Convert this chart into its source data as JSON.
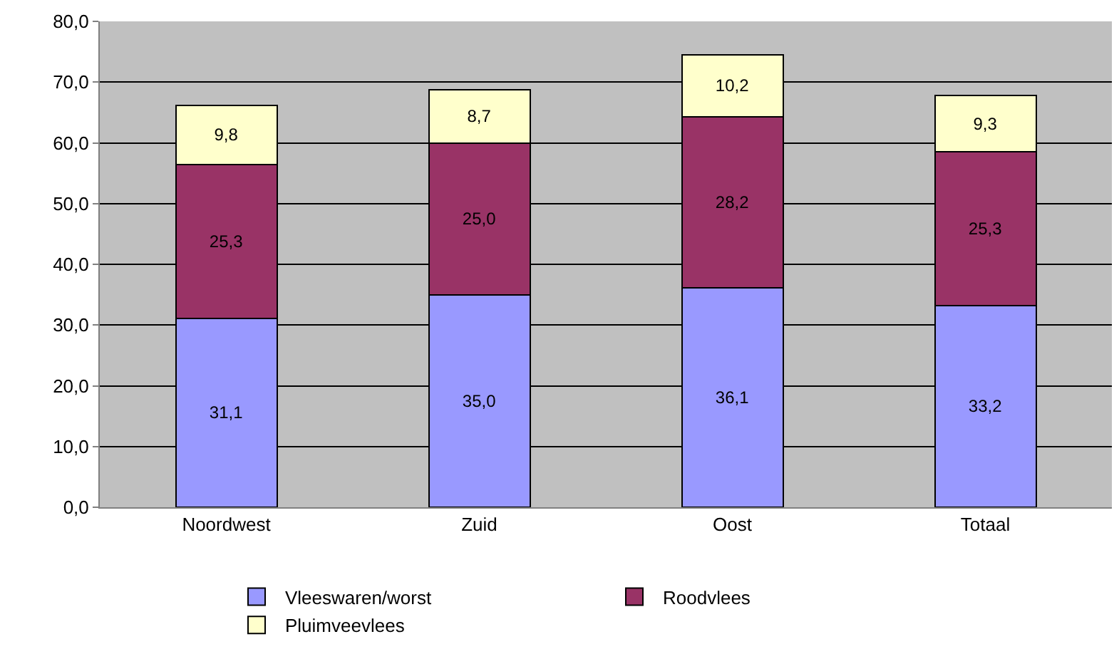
{
  "chart_data": {
    "type": "bar",
    "stacked": true,
    "categories": [
      "Noordwest",
      "Zuid",
      "Oost",
      "Totaal"
    ],
    "series": [
      {
        "name": "Vleeswaren/worst",
        "color": "#9999ff",
        "values": [
          31.1,
          35.0,
          36.1,
          33.2
        ],
        "value_labels": [
          "31,1",
          "35,0",
          "36,1",
          "33,2"
        ]
      },
      {
        "name": "Roodvlees",
        "color": "#993366",
        "values": [
          25.3,
          25.0,
          28.2,
          25.3
        ],
        "value_labels": [
          "25,3",
          "25,0",
          "28,2",
          "25,3"
        ]
      },
      {
        "name": "Pluimveevlees",
        "color": "#ffffcc",
        "values": [
          9.8,
          8.7,
          10.2,
          9.3
        ],
        "value_labels": [
          "9,8",
          "8,7",
          "10,2",
          "9,3"
        ]
      }
    ],
    "ylim": [
      0,
      80
    ],
    "yticks": [
      {
        "value": 0,
        "label": "0,0"
      },
      {
        "value": 10,
        "label": "10,0"
      },
      {
        "value": 20,
        "label": "20,0"
      },
      {
        "value": 30,
        "label": "30,0"
      },
      {
        "value": 40,
        "label": "40,0"
      },
      {
        "value": 50,
        "label": "50,0"
      },
      {
        "value": 60,
        "label": "60,0"
      },
      {
        "value": 70,
        "label": "70,0"
      },
      {
        "value": 80,
        "label": "80,0"
      }
    ],
    "grid": "y",
    "legend": "bottom"
  }
}
